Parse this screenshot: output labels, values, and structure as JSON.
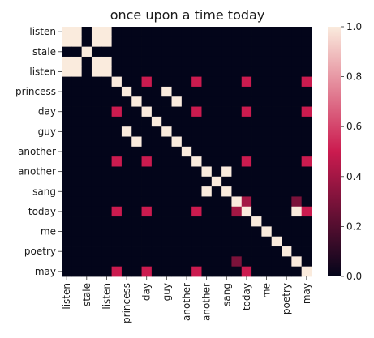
{
  "chart_data": {
    "type": "heatmap",
    "title": "once upon a time today",
    "xlabel": "",
    "ylabel": "",
    "x_labels": [
      "listen",
      "stale",
      "listen",
      "princess",
      "day",
      "guy",
      "another",
      "another",
      "sang",
      "today",
      "me",
      "poetry",
      "may"
    ],
    "y_labels": [
      "listen",
      "stale",
      "listen",
      "princess",
      "day",
      "guy",
      "another",
      "another",
      "sang",
      "today",
      "me",
      "poetry",
      "may"
    ],
    "tokens": [
      "listen",
      "listen",
      "stale",
      "listen",
      "listen",
      "princess",
      "princess",
      "day",
      "day",
      "guy",
      "guy",
      "another",
      "another",
      "another",
      "another",
      "sang",
      "sang",
      "today",
      "today",
      "me",
      "me",
      "poetry",
      "poetry",
      "may",
      "may"
    ],
    "matrix": [
      [
        1,
        1,
        0,
        1,
        1,
        0,
        0,
        0,
        0,
        0,
        0,
        0,
        0,
        0,
        0,
        0,
        0,
        0,
        0,
        0,
        0,
        0,
        0,
        0,
        0
      ],
      [
        1,
        1,
        0,
        1,
        1,
        0,
        0,
        0,
        0,
        0,
        0,
        0,
        0,
        0,
        0,
        0,
        0,
        0,
        0,
        0,
        0,
        0,
        0,
        0,
        0
      ],
      [
        0,
        0,
        1,
        0,
        0,
        0,
        0,
        0,
        0,
        0,
        0,
        0,
        0,
        0,
        0,
        0,
        0,
        0,
        0,
        0,
        0,
        0,
        0,
        0,
        0
      ],
      [
        1,
        1,
        0,
        1,
        1,
        0,
        0,
        0,
        0,
        0,
        0,
        0,
        0,
        0,
        0,
        0,
        0,
        0,
        0,
        0,
        0,
        0,
        0,
        0,
        0
      ],
      [
        1,
        1,
        0,
        1,
        1,
        0,
        0,
        0,
        0,
        0,
        0,
        0,
        0,
        0,
        0,
        0,
        0,
        0,
        0,
        0,
        0,
        0,
        0,
        0,
        0
      ],
      [
        0,
        0,
        0,
        0,
        0,
        1,
        0,
        0,
        0.5,
        0,
        0,
        0,
        0,
        0.5,
        0,
        0,
        0,
        0,
        0.5,
        0,
        0,
        0,
        0,
        0,
        0.5
      ],
      [
        0,
        0,
        0,
        0,
        0,
        0,
        1,
        0,
        0,
        0,
        1,
        0,
        0,
        0,
        0,
        0,
        0,
        0,
        0,
        0,
        0,
        0,
        0,
        0,
        0
      ],
      [
        0,
        0,
        0,
        0,
        0,
        0,
        0,
        1,
        0,
        0,
        0,
        1,
        0,
        0,
        0,
        0,
        0,
        0,
        0,
        0,
        0,
        0,
        0,
        0,
        0
      ],
      [
        0,
        0,
        0,
        0,
        0,
        0.5,
        0,
        0,
        1,
        0,
        0,
        0,
        0,
        0.5,
        0,
        0,
        0,
        0,
        0.5,
        0,
        0,
        0,
        0,
        0,
        0.5
      ],
      [
        0,
        0,
        0,
        0,
        0,
        0,
        0,
        0,
        0,
        1,
        0,
        0,
        0,
        0,
        0,
        0,
        0,
        0,
        0,
        0,
        0,
        0,
        0,
        0,
        0
      ],
      [
        0,
        0,
        0,
        0,
        0,
        0,
        1,
        0,
        0,
        0,
        1,
        0,
        0,
        0,
        0,
        0,
        0,
        0,
        0,
        0,
        0,
        0,
        0,
        0,
        0
      ],
      [
        0,
        0,
        0,
        0,
        0,
        0,
        0,
        1,
        0,
        0,
        0,
        1,
        0,
        0,
        0,
        0,
        0,
        0,
        0,
        0,
        0,
        0,
        0,
        0,
        0
      ],
      [
        0,
        0,
        0,
        0,
        0,
        0,
        0,
        0,
        0,
        0,
        0,
        0,
        1,
        0,
        0,
        0,
        0,
        0,
        0,
        0,
        0,
        0,
        0,
        0,
        0
      ],
      [
        0,
        0,
        0,
        0,
        0,
        0.5,
        0,
        0,
        0.5,
        0,
        0,
        0,
        0,
        1,
        0,
        0,
        0,
        0,
        0.5,
        0,
        0,
        0,
        0,
        0,
        0.5
      ],
      [
        0,
        0,
        0,
        0,
        0,
        0,
        0,
        0,
        0,
        0,
        0,
        0,
        0,
        0,
        1,
        0,
        1,
        0,
        0,
        0,
        0,
        0,
        0,
        0,
        0
      ],
      [
        0,
        0,
        0,
        0,
        0,
        0,
        0,
        0,
        0,
        0,
        0,
        0,
        0,
        0,
        0,
        1,
        0,
        0,
        0,
        0,
        0,
        0,
        0,
        0,
        0
      ],
      [
        0,
        0,
        0,
        0,
        0,
        0,
        0,
        0,
        0,
        0,
        0,
        0,
        0,
        0,
        1,
        0,
        1,
        0,
        0,
        0,
        0,
        0,
        0,
        0,
        0
      ],
      [
        0,
        0,
        0,
        0,
        0,
        0,
        0,
        0,
        0,
        0,
        0,
        0,
        0,
        0,
        0,
        0,
        0,
        1,
        0.4,
        0,
        0,
        0,
        0,
        0.3,
        0
      ],
      [
        0,
        0,
        0,
        0,
        0,
        0.5,
        0,
        0,
        0.5,
        0,
        0,
        0,
        0,
        0.5,
        0,
        0,
        0,
        0.4,
        1,
        0,
        0,
        0,
        0,
        1,
        0.5
      ],
      [
        0,
        0,
        0,
        0,
        0,
        0,
        0,
        0,
        0,
        0,
        0,
        0,
        0,
        0,
        0,
        0,
        0,
        0,
        0,
        1,
        0,
        0,
        0,
        0,
        0
      ],
      [
        0,
        0,
        0,
        0,
        0,
        0,
        0,
        0,
        0,
        0,
        0,
        0,
        0,
        0,
        0,
        0,
        0,
        0,
        0,
        0,
        1,
        0,
        0,
        0,
        0
      ],
      [
        0,
        0,
        0,
        0,
        0,
        0,
        0,
        0,
        0,
        0,
        0,
        0,
        0,
        0,
        0,
        0,
        0,
        0,
        0,
        0,
        0,
        1,
        0,
        0,
        0
      ],
      [
        0,
        0,
        0,
        0,
        0,
        0,
        0,
        0,
        0,
        0,
        0,
        0,
        0,
        0,
        0,
        0,
        0,
        0,
        0,
        0,
        0,
        0,
        1,
        0,
        0
      ],
      [
        0,
        0,
        0,
        0,
        0,
        0,
        0,
        0,
        0,
        0,
        0,
        0,
        0,
        0,
        0,
        0,
        0,
        0.3,
        0,
        0,
        0,
        0,
        0,
        1,
        0
      ],
      [
        0,
        0,
        0,
        0,
        0,
        0.5,
        0,
        0,
        0.5,
        0,
        0,
        0,
        0,
        0.5,
        0,
        0,
        0,
        0,
        0.5,
        0,
        0,
        0,
        0,
        0,
        1
      ]
    ],
    "colorbar": {
      "min": 0.0,
      "max": 1.0,
      "ticks": [
        "0.0",
        "0.2",
        "0.4",
        "0.6",
        "0.8",
        "1.0"
      ]
    },
    "colormap": "rocket",
    "colors": {
      "low": "#03051a",
      "mid": "#cb1b4f",
      "high": "#faebdd"
    }
  }
}
